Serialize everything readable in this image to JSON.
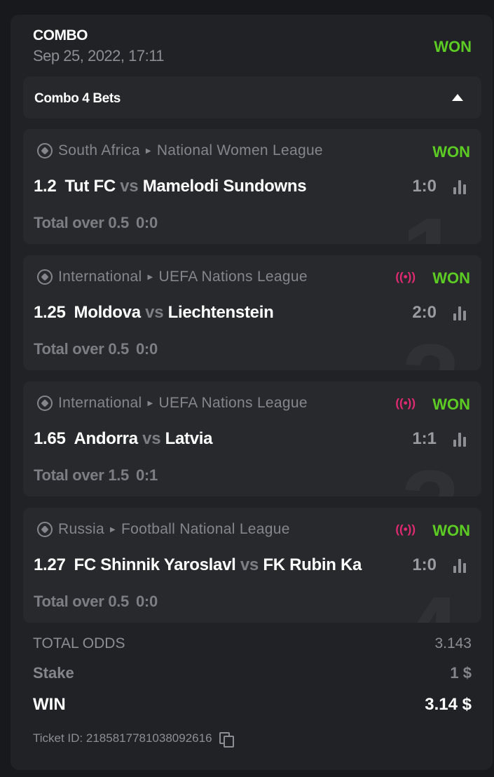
{
  "header": {
    "title": "COMBO",
    "date": "Sep 25, 2022, 17:11",
    "status": "WON"
  },
  "combo": {
    "label": "Combo 4 Bets",
    "expanded": true
  },
  "bets": [
    {
      "num": "1",
      "country": "South Africa",
      "league": "National Women League",
      "live": false,
      "status": "WON",
      "odd": "1.2",
      "home": "Tut FC",
      "vs": "vs",
      "away": "Mamelodi Sundowns",
      "score": "1:0",
      "market": "Total over 0.5",
      "market_score": "0:0"
    },
    {
      "num": "2",
      "country": "International",
      "league": "UEFA Nations League",
      "live": true,
      "status": "WON",
      "odd": "1.25",
      "home": "Moldova",
      "vs": "vs",
      "away": "Liechtenstein",
      "score": "2:0",
      "market": "Total over 0.5",
      "market_score": "0:0"
    },
    {
      "num": "3",
      "country": "International",
      "league": "UEFA Nations League",
      "live": true,
      "status": "WON",
      "odd": "1.65",
      "home": "Andorra",
      "vs": "vs",
      "away": "Latvia",
      "score": "1:1",
      "market": "Total over 1.5",
      "market_score": "0:1"
    },
    {
      "num": "4",
      "country": "Russia",
      "league": "Football National League",
      "live": true,
      "status": "WON",
      "odd": "1.27",
      "home": "FC Shinnik Yaroslavl",
      "vs": "vs",
      "away": "FK Rubin Ka",
      "score": "1:0",
      "market": "Total over 0.5",
      "market_score": "0:0"
    }
  ],
  "summary": {
    "total_odds_label": "TOTAL ODDS",
    "total_odds": "3.143",
    "stake_label": "Stake",
    "stake": "1 $",
    "win_label": "WIN",
    "win": "3.14 $",
    "ticket_label": "Ticket ID:",
    "ticket_id": "2185817781038092616"
  },
  "colors": {
    "won": "#5ccc24",
    "live": "#e02a72",
    "background": "#18191c",
    "card": "#212226"
  }
}
